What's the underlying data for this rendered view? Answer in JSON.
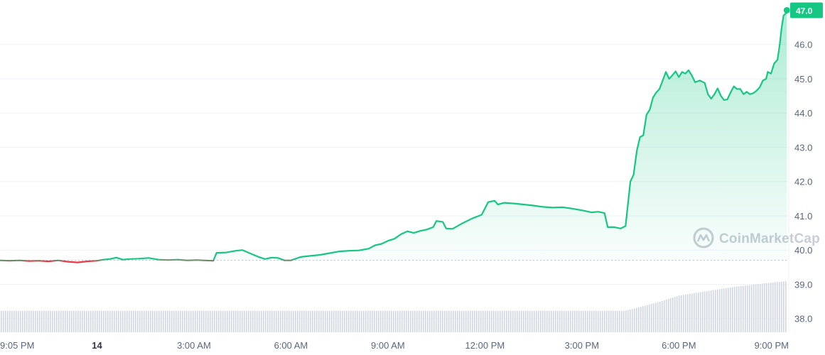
{
  "watermark": {
    "text": "CoinMarketCap",
    "icon": "coinmarketcap-logo"
  },
  "chart_data": {
    "type": "area",
    "x_ticks": [
      {
        "label": "9:05 PM",
        "t": 0.1,
        "bold": false
      },
      {
        "label": "14",
        "t": 3,
        "bold": true
      },
      {
        "label": "3:00 AM",
        "t": 6,
        "bold": false
      },
      {
        "label": "6:00 AM",
        "t": 9,
        "bold": false
      },
      {
        "label": "9:00 AM",
        "t": 12,
        "bold": false
      },
      {
        "label": "12:00 PM",
        "t": 15,
        "bold": false
      },
      {
        "label": "3:00 PM",
        "t": 18,
        "bold": false
      },
      {
        "label": "6:00 PM",
        "t": 21,
        "bold": false
      },
      {
        "label": "9:00 PM",
        "t": 24,
        "bold": false
      }
    ],
    "y_ticks": [
      {
        "label": "38.0",
        "value": 38
      },
      {
        "label": "39.0",
        "value": 39
      },
      {
        "label": "40.0",
        "value": 40
      },
      {
        "label": "41.0",
        "value": 41
      },
      {
        "label": "42.0",
        "value": 42
      },
      {
        "label": "43.0",
        "value": 43
      },
      {
        "label": "44.0",
        "value": 44
      },
      {
        "label": "45.0",
        "value": 45
      },
      {
        "label": "46.0",
        "value": 46
      }
    ],
    "ylim": [
      37.6,
      47.3
    ],
    "xlim": [
      0,
      24.4
    ],
    "reference_price": 39.7,
    "current_price": {
      "label": "47.0",
      "value": 47.0
    },
    "colors": {
      "up": "#16c784",
      "down": "#ea3943",
      "grid": "#eff2f5",
      "volume": "#cfd6e4",
      "text": "#58667e"
    },
    "series": [
      {
        "points": [
          [
            0.0,
            39.7
          ],
          [
            0.3,
            39.69
          ],
          [
            0.6,
            39.7
          ],
          [
            0.9,
            39.68
          ],
          [
            1.2,
            39.69
          ],
          [
            1.5,
            39.67
          ],
          [
            1.8,
            39.7
          ],
          [
            2.1,
            39.66
          ],
          [
            2.4,
            39.64
          ],
          [
            2.7,
            39.67
          ],
          [
            3.0,
            39.69
          ],
          [
            3.2,
            39.72
          ],
          [
            3.4,
            39.74
          ],
          [
            3.6,
            39.78
          ],
          [
            3.8,
            39.72
          ],
          [
            4.0,
            39.74
          ],
          [
            4.3,
            39.75
          ],
          [
            4.6,
            39.77
          ],
          [
            4.9,
            39.72
          ],
          [
            5.2,
            39.71
          ],
          [
            5.5,
            39.72
          ],
          [
            5.8,
            39.7
          ],
          [
            6.1,
            39.71
          ],
          [
            6.3,
            39.7
          ],
          [
            6.6,
            39.69
          ],
          [
            6.7,
            39.92
          ],
          [
            7.0,
            39.93
          ],
          [
            7.3,
            39.98
          ],
          [
            7.5,
            40.0
          ],
          [
            7.7,
            39.92
          ],
          [
            8.0,
            39.8
          ],
          [
            8.2,
            39.74
          ],
          [
            8.4,
            39.78
          ],
          [
            8.6,
            39.77
          ],
          [
            8.8,
            39.7
          ],
          [
            9.0,
            39.7
          ],
          [
            9.3,
            39.8
          ],
          [
            9.6,
            39.83
          ],
          [
            9.9,
            39.86
          ],
          [
            10.2,
            39.91
          ],
          [
            10.5,
            39.96
          ],
          [
            10.8,
            39.98
          ],
          [
            11.1,
            39.99
          ],
          [
            11.4,
            40.04
          ],
          [
            11.6,
            40.14
          ],
          [
            11.8,
            40.18
          ],
          [
            12.0,
            40.27
          ],
          [
            12.2,
            40.33
          ],
          [
            12.4,
            40.46
          ],
          [
            12.6,
            40.55
          ],
          [
            12.8,
            40.5
          ],
          [
            13.0,
            40.56
          ],
          [
            13.2,
            40.6
          ],
          [
            13.4,
            40.67
          ],
          [
            13.5,
            40.85
          ],
          [
            13.7,
            40.82
          ],
          [
            13.8,
            40.63
          ],
          [
            14.0,
            40.62
          ],
          [
            14.3,
            40.78
          ],
          [
            14.6,
            40.92
          ],
          [
            14.9,
            41.03
          ],
          [
            15.1,
            41.4
          ],
          [
            15.3,
            41.44
          ],
          [
            15.4,
            41.33
          ],
          [
            15.6,
            41.38
          ],
          [
            15.9,
            41.36
          ],
          [
            16.2,
            41.33
          ],
          [
            16.5,
            41.3
          ],
          [
            16.8,
            41.26
          ],
          [
            17.1,
            41.24
          ],
          [
            17.4,
            41.25
          ],
          [
            17.7,
            41.21
          ],
          [
            18.0,
            41.16
          ],
          [
            18.3,
            41.1
          ],
          [
            18.5,
            41.12
          ],
          [
            18.7,
            41.08
          ],
          [
            18.8,
            40.67
          ],
          [
            19.0,
            40.67
          ],
          [
            19.2,
            40.63
          ],
          [
            19.35,
            40.7
          ],
          [
            19.5,
            42.0
          ],
          [
            19.6,
            42.2
          ],
          [
            19.7,
            42.9
          ],
          [
            19.8,
            43.3
          ],
          [
            19.9,
            43.35
          ],
          [
            20.0,
            43.95
          ],
          [
            20.1,
            44.1
          ],
          [
            20.2,
            44.45
          ],
          [
            20.3,
            44.6
          ],
          [
            20.4,
            44.7
          ],
          [
            20.5,
            44.95
          ],
          [
            20.6,
            45.2
          ],
          [
            20.7,
            45.0
          ],
          [
            20.8,
            45.1
          ],
          [
            20.9,
            45.22
          ],
          [
            21.0,
            45.05
          ],
          [
            21.1,
            45.2
          ],
          [
            21.2,
            45.15
          ],
          [
            21.3,
            45.25
          ],
          [
            21.4,
            45.1
          ],
          [
            21.5,
            44.9
          ],
          [
            21.65,
            44.95
          ],
          [
            21.8,
            44.88
          ],
          [
            21.9,
            44.55
          ],
          [
            22.0,
            44.42
          ],
          [
            22.1,
            44.55
          ],
          [
            22.2,
            44.72
          ],
          [
            22.3,
            44.5
          ],
          [
            22.4,
            44.38
          ],
          [
            22.5,
            44.4
          ],
          [
            22.6,
            44.6
          ],
          [
            22.7,
            44.78
          ],
          [
            22.8,
            44.7
          ],
          [
            22.9,
            44.7
          ],
          [
            23.0,
            44.55
          ],
          [
            23.1,
            44.62
          ],
          [
            23.2,
            44.55
          ],
          [
            23.3,
            44.58
          ],
          [
            23.4,
            44.65
          ],
          [
            23.5,
            44.75
          ],
          [
            23.6,
            44.95
          ],
          [
            23.7,
            45.0
          ],
          [
            23.75,
            45.2
          ],
          [
            23.85,
            45.15
          ],
          [
            23.95,
            45.45
          ],
          [
            24.05,
            45.55
          ],
          [
            24.12,
            46.0
          ],
          [
            24.18,
            46.5
          ],
          [
            24.24,
            46.85
          ],
          [
            24.3,
            46.9
          ],
          [
            24.34,
            47.0
          ]
        ]
      }
    ],
    "volume": {
      "levels": [
        [
          0,
          0.42
        ],
        [
          19.3,
          0.42
        ],
        [
          19.5,
          0.45
        ],
        [
          19.8,
          0.5
        ],
        [
          20.1,
          0.55
        ],
        [
          20.4,
          0.6
        ],
        [
          20.7,
          0.66
        ],
        [
          21.0,
          0.72
        ],
        [
          21.4,
          0.76
        ],
        [
          21.8,
          0.8
        ],
        [
          22.2,
          0.84
        ],
        [
          22.6,
          0.88
        ],
        [
          23.0,
          0.91
        ],
        [
          23.4,
          0.94
        ],
        [
          23.8,
          0.97
        ],
        [
          24.34,
          1.0
        ]
      ]
    }
  }
}
